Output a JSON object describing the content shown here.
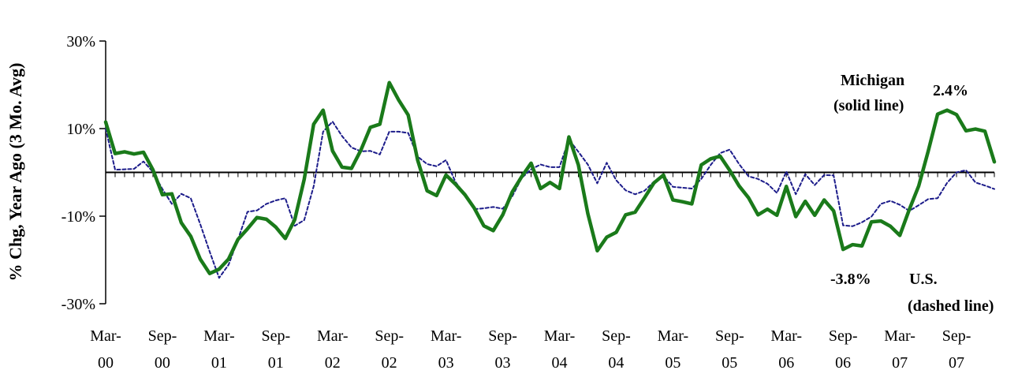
{
  "chart_data": {
    "type": "line",
    "title": "",
    "ylabel": "% Chg, Year Ago (3 Mo. Avg)",
    "xlabel": "",
    "ylim": [
      -30,
      30
    ],
    "yticks": [
      {
        "value": 30,
        "label": "30%"
      },
      {
        "value": 10,
        "label": "10%"
      },
      {
        "value": -10,
        "label": "-10%"
      },
      {
        "value": -30,
        "label": "-30%"
      }
    ],
    "xticks": [
      {
        "index": 0,
        "line1": "Mar-",
        "line2": "00"
      },
      {
        "index": 6,
        "line1": "Sep-",
        "line2": "00"
      },
      {
        "index": 12,
        "line1": "Mar-",
        "line2": "01"
      },
      {
        "index": 18,
        "line1": "Sep-",
        "line2": "01"
      },
      {
        "index": 24,
        "line1": "Mar-",
        "line2": "02"
      },
      {
        "index": 30,
        "line1": "Sep-",
        "line2": "02"
      },
      {
        "index": 36,
        "line1": "Mar-",
        "line2": "03"
      },
      {
        "index": 42,
        "line1": "Sep-",
        "line2": "03"
      },
      {
        "index": 48,
        "line1": "Mar-",
        "line2": "04"
      },
      {
        "index": 54,
        "line1": "Sep-",
        "line2": "04"
      },
      {
        "index": 60,
        "line1": "Mar-",
        "line2": "05"
      },
      {
        "index": 66,
        "line1": "Sep-",
        "line2": "05"
      },
      {
        "index": 72,
        "line1": "Mar-",
        "line2": "06"
      },
      {
        "index": 78,
        "line1": "Sep-",
        "line2": "06"
      },
      {
        "index": 84,
        "line1": "Mar-",
        "line2": "07"
      },
      {
        "index": 90,
        "line1": "Sep-",
        "line2": "07"
      }
    ],
    "start_month": "Mar-00",
    "series": [
      {
        "color": "#1a7a1a",
        "style": "solid",
        "values": [
          11.5,
          4.3,
          4.7,
          4.2,
          4.6,
          0.6,
          -5.1,
          -4.9,
          -11.5,
          -14.6,
          -19.8,
          -23.1,
          -22.1,
          -19.8,
          -15.3,
          -12.9,
          -10.3,
          -10.7,
          -12.5,
          -15.1,
          -10.8,
          -1.6,
          11,
          14.2,
          4.9,
          1.2,
          0.9,
          5.1,
          10.3,
          11,
          20.5,
          16.5,
          13.1,
          2.8,
          -4.2,
          -5.3,
          -0.6,
          -2.7,
          -5.1,
          -8.2,
          -12.2,
          -13.3,
          -9.7,
          -4.5,
          -1,
          2.1,
          -3.7,
          -2.3,
          -3.7,
          8.1,
          1.7,
          -9.4,
          -17.9,
          -14.8,
          -13.7,
          -9.7,
          -9.1,
          -5.8,
          -2.4,
          -0.6,
          -6.3,
          -6.7,
          -7.2,
          1.7,
          3.1,
          3.7,
          0.5,
          -3.1,
          -5.8,
          -9.7,
          -8.4,
          -9.8,
          -3.2,
          -10.1,
          -6.6,
          -9.8,
          -6.3,
          -8.8,
          -17.6,
          -16.5,
          -16.8,
          -11.3,
          -11.1,
          -12.3,
          -14.4,
          -8.5,
          -3.1,
          4.8,
          13.3,
          14.2,
          13.2,
          9.5,
          9.9,
          9.4,
          2.4
        ]
      },
      {
        "color": "#1c1c8a",
        "style": "dashed",
        "values": [
          10,
          0.6,
          0.7,
          0.8,
          2.5,
          0.1,
          -3.8,
          -7.2,
          -4.9,
          -5.9,
          -11.8,
          -18.1,
          -24.1,
          -21.1,
          -15.3,
          -9,
          -8.7,
          -7.2,
          -6.4,
          -5.9,
          -12.2,
          -10.9,
          -3.2,
          9.3,
          11.6,
          8.3,
          5.7,
          4.8,
          4.9,
          4.1,
          9.3,
          9.3,
          9,
          3.6,
          1.9,
          1.4,
          2.8,
          -2.2,
          -5,
          -8.4,
          -8.2,
          -7.9,
          -8.3,
          -5.5,
          -1.3,
          0.7,
          1.8,
          1.2,
          1.2,
          7.5,
          4.7,
          1.8,
          -2.5,
          2.2,
          -1.8,
          -4.1,
          -5,
          -4.2,
          -2.1,
          -0.8,
          -3.3,
          -3.5,
          -3.7,
          -1.5,
          1.7,
          4.4,
          5.2,
          1.9,
          -0.9,
          -1.5,
          -2.6,
          -4.7,
          0.2,
          -5,
          -0.4,
          -2.9,
          -0.6,
          -0.7,
          -12.1,
          -12.3,
          -11.4,
          -10.1,
          -7.2,
          -6.5,
          -7.4,
          -8.8,
          -7.5,
          -6.1,
          -5.9,
          -2.4,
          0,
          0.5,
          -2.3,
          -3,
          -3.8
        ]
      }
    ],
    "annotations": {
      "michigan_line1": "Michigan",
      "michigan_line2": "(solid line)",
      "michigan_value": "2.4%",
      "us_value": "-3.8%",
      "us_line1": "U.S.",
      "us_line2": "(dashed line)"
    },
    "grid": false
  }
}
